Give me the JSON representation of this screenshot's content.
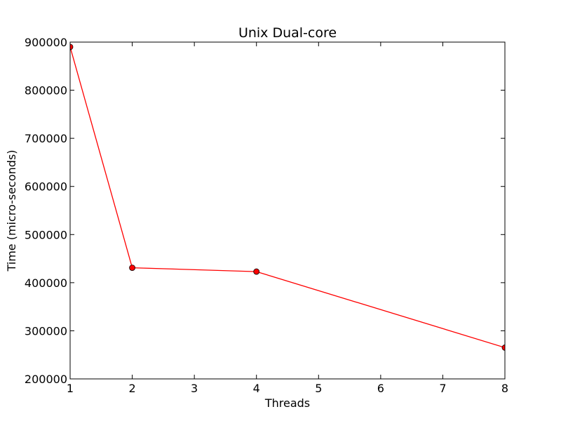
{
  "chart_data": {
    "type": "line",
    "title": "Unix Dual-core",
    "xlabel": "Threads",
    "ylabel": "Time (micro-seconds)",
    "xlim": [
      1,
      8
    ],
    "ylim": [
      200000,
      900000
    ],
    "x_ticks": [
      1,
      2,
      3,
      4,
      5,
      6,
      7,
      8
    ],
    "y_ticks": [
      200000,
      300000,
      400000,
      500000,
      600000,
      700000,
      800000,
      900000
    ],
    "grid": false,
    "series": [
      {
        "color": "#ff0000",
        "marker": "circle",
        "x": [
          1,
          2,
          4,
          8
        ],
        "y": [
          890000,
          431000,
          423000,
          265000
        ]
      }
    ]
  }
}
